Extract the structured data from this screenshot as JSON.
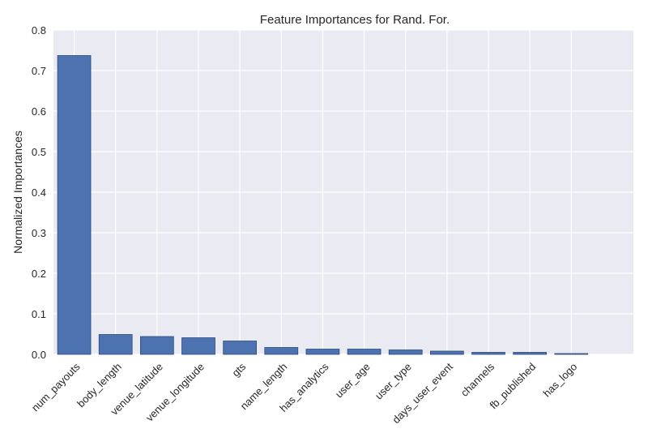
{
  "chart_data": {
    "type": "bar",
    "title": "Feature Importances for Rand. For.",
    "xlabel": "",
    "ylabel": "Normalized Importances",
    "categories": [
      "num_payouts",
      "body_length",
      "venue_latitude",
      "venue_longitude",
      "gts",
      "name_length",
      "has_analytics",
      "user_age",
      "user_type",
      "days_user_event",
      "channels",
      "fb_published",
      "has_logo"
    ],
    "values": [
      0.737,
      0.049,
      0.044,
      0.041,
      0.033,
      0.017,
      0.013,
      0.013,
      0.011,
      0.008,
      0.005,
      0.005,
      0.002
    ],
    "ylim": [
      0,
      0.8
    ],
    "yticks": [
      "0.0",
      "0.1",
      "0.2",
      "0.3",
      "0.4",
      "0.5",
      "0.6",
      "0.7",
      "0.8"
    ],
    "grid": true,
    "colors": {
      "bar": "#4c72b0",
      "bar_edge": "#2f4a78",
      "plot_background": "#eaeaf2",
      "grid": "#ffffff"
    }
  }
}
